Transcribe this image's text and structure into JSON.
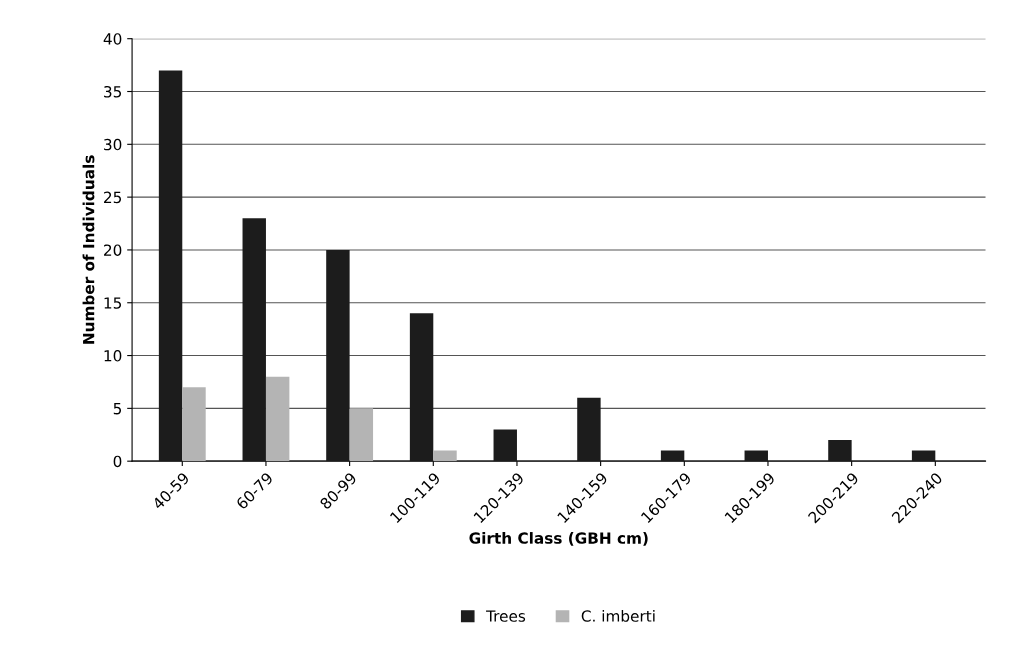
{
  "chart_data": {
    "type": "bar",
    "xlabel": "Girth Class (GBH cm)",
    "ylabel": "Number of Individuals",
    "categories": [
      "40-59",
      "60-79",
      "80-99",
      "100-119",
      "120-139",
      "140-159",
      "160-179",
      "180-199",
      "200-219",
      "220-240"
    ],
    "series": [
      {
        "name": "Trees",
        "color": "#1c1c1c",
        "values": [
          37,
          23,
          20,
          14,
          3,
          6,
          1,
          1,
          2,
          1
        ]
      },
      {
        "name": "C. imberti",
        "color": "#b4b4b4",
        "values": [
          7,
          8,
          5,
          1,
          0,
          0,
          0,
          0,
          0,
          0
        ]
      }
    ],
    "ylim": [
      0,
      40
    ],
    "yticks": [
      0,
      5,
      10,
      15,
      20,
      25,
      30,
      35,
      40
    ],
    "grid": "y",
    "legend": "bottom"
  }
}
